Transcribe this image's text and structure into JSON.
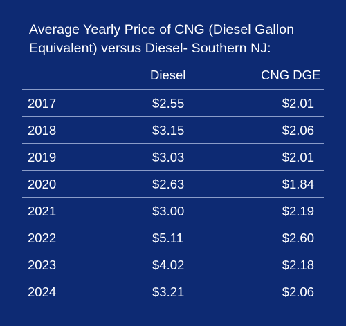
{
  "chart_data": {
    "type": "table",
    "title_lines": [
      "Average Yearly Price of CNG (Diesel Gallon",
      "Equivalent) versus Diesel- Southern NJ:"
    ],
    "columns": [
      "",
      "Diesel",
      "CNG DGE"
    ],
    "rows": [
      {
        "year": "2017",
        "diesel": "$2.55",
        "cng": "$2.01"
      },
      {
        "year": "2018",
        "diesel": "$3.15",
        "cng": "$2.06"
      },
      {
        "year": "2019",
        "diesel": "$3.03",
        "cng": "$2.01"
      },
      {
        "year": "2020",
        "diesel": "$2.63",
        "cng": "$1.84"
      },
      {
        "year": "2021",
        "diesel": "$3.00",
        "cng": "$2.19"
      },
      {
        "year": "2022",
        "diesel": "$5.11",
        "cng": "$2.60"
      },
      {
        "year": "2023",
        "diesel": "$4.02",
        "cng": "$2.18"
      },
      {
        "year": "2024",
        "diesel": "$3.21",
        "cng": "$2.06"
      }
    ]
  },
  "colors": {
    "background": "#0d2a73",
    "text": "#ffffff",
    "divider": "#8a9cc8"
  }
}
